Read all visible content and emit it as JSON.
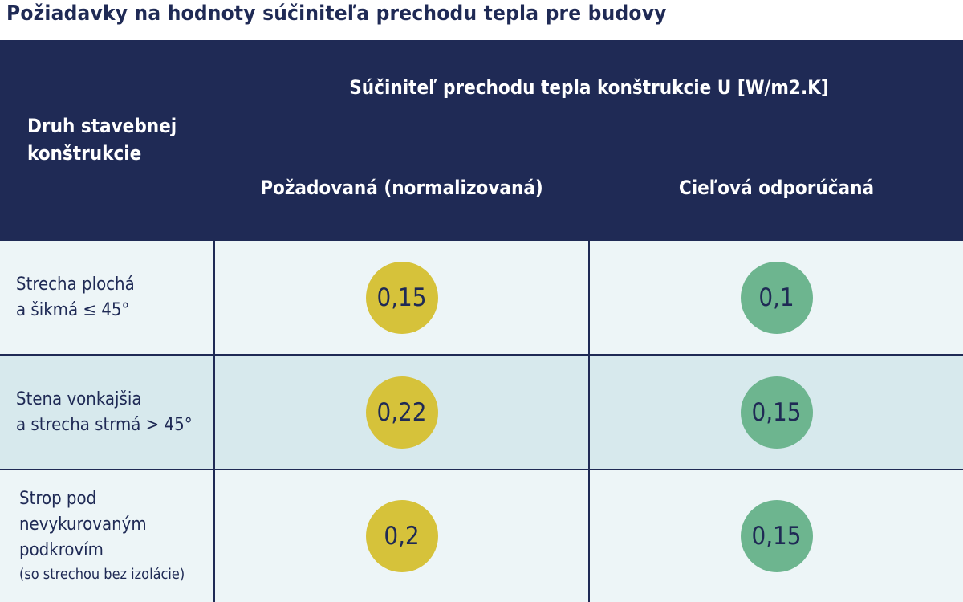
{
  "title": "Požiadavky na hodnoty súčiniteľa prechodu tepla pre budovy",
  "header": {
    "col1": [
      "Druh stavebnej",
      "konštrukcie"
    ],
    "group": "Súčiniteľ prechodu tepla konštrukcie U [W/m2.K]",
    "col2": "Požadovaná (normalizovaná)",
    "col3": "Cieľová odporúčaná"
  },
  "rows": [
    {
      "label": [
        "Strecha plochá",
        "a šikmá ≤ 45°"
      ],
      "required": "0,15",
      "target": "0,1"
    },
    {
      "label": [
        "Stena vonkajšia",
        "a strecha strmá > 45°"
      ],
      "required": "0,22",
      "target": "0,15"
    },
    {
      "label": [
        "Strop pod",
        "nevykurovaným",
        "podkrovím"
      ],
      "note": "(so strechou bez izolácie)",
      "required": "0,2",
      "target": "0,15"
    }
  ],
  "colors": {
    "navy": "#1f2a55",
    "required_circle": "#d6c23a",
    "target_circle": "#6db58f",
    "row_light": "#edf5f7",
    "row_dark": "#d7e9ed"
  }
}
